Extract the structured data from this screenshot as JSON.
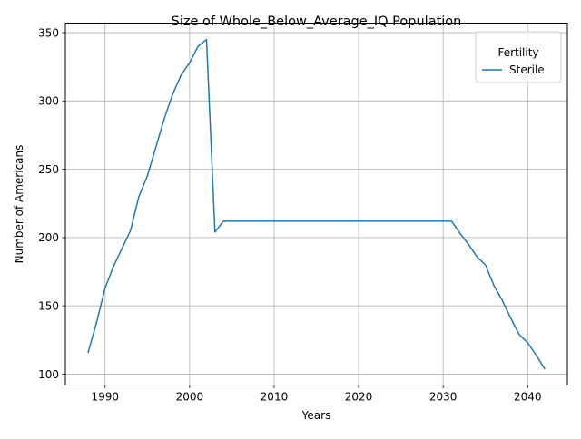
{
  "chart_data": {
    "type": "line",
    "title": "Size of Whole_Below_Average_IQ Population",
    "xlabel": "Years",
    "ylabel": "Number of Americans",
    "xlim": [
      1985.3,
      2044.7
    ],
    "ylim": [
      92,
      357
    ],
    "xticks": [
      1990,
      2000,
      2010,
      2020,
      2030,
      2040
    ],
    "yticks": [
      100,
      150,
      200,
      250,
      300,
      350
    ],
    "grid": true,
    "legend": {
      "title": "Fertility",
      "placement": "top-right"
    },
    "series": [
      {
        "name": "Sterile",
        "color": "#1f77b4",
        "x": [
          1988,
          1989,
          1990,
          1991,
          1992,
          1993,
          1994,
          1995,
          1996,
          1997,
          1998,
          1999,
          2000,
          2001,
          2002,
          2003,
          2004,
          2005,
          2006,
          2007,
          2008,
          2009,
          2010,
          2011,
          2012,
          2013,
          2014,
          2015,
          2016,
          2017,
          2018,
          2019,
          2020,
          2021,
          2022,
          2023,
          2024,
          2025,
          2026,
          2027,
          2028,
          2029,
          2030,
          2031,
          2032,
          2033,
          2034,
          2035,
          2036,
          2037,
          2038,
          2039,
          2040,
          2041,
          2042
        ],
        "y": [
          116,
          138,
          163,
          179,
          192,
          205,
          230,
          245,
          266,
          287,
          305,
          319,
          328,
          340,
          345,
          204,
          212,
          212,
          212,
          212,
          212,
          212,
          212,
          212,
          212,
          212,
          212,
          212,
          212,
          212,
          212,
          212,
          212,
          212,
          212,
          212,
          212,
          212,
          212,
          212,
          212,
          212,
          212,
          212,
          203,
          195,
          186,
          180,
          165,
          154,
          141,
          129,
          123,
          114,
          104
        ]
      }
    ]
  }
}
